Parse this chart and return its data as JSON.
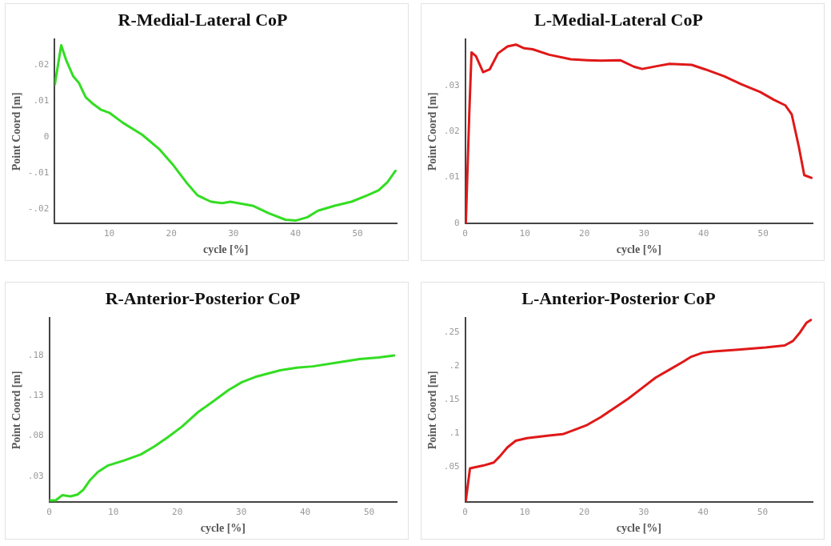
{
  "chart_data": [
    {
      "type": "line",
      "title": "R-Medial-Lateral CoP",
      "xlabel": "cycle [%]",
      "ylabel": "Point Coord [m]",
      "xlim": [
        1.2,
        56.3
      ],
      "ylim": [
        -0.024,
        0.027
      ],
      "xticks": [
        10,
        20,
        30,
        40,
        50
      ],
      "yticks": [
        {
          "value": -0.02,
          "label": "-.02"
        },
        {
          "value": -0.01,
          "label": "-.01"
        },
        0,
        {
          "value": 0.01,
          "label": ".01"
        },
        {
          "value": 0.02,
          "label": ".02"
        }
      ],
      "grid": false,
      "legend": false,
      "marker": "none",
      "line_style": "solid",
      "series": [
        {
          "color": "#33dd22",
          "x": [
            1.24,
            2.26,
            3.1,
            4.2,
            5.1,
            6.2,
            7.35,
            8.7,
            10,
            12.2,
            15.3,
            18,
            20.2,
            22.4,
            24.2,
            26.4,
            28.2,
            29.5,
            33.1,
            35.7,
            38.4,
            40.1,
            41.9,
            43.6,
            46.3,
            49,
            51.6,
            53.4,
            54.8,
            56.1
          ],
          "values": [
            0.0146,
            0.0254,
            0.0211,
            0.0168,
            0.015,
            0.011,
            0.0092,
            0.0075,
            0.0067,
            0.0039,
            0.0006,
            -0.0033,
            -0.0076,
            -0.0126,
            -0.0162,
            -0.018,
            -0.0184,
            -0.018,
            -0.0191,
            -0.0212,
            -0.023,
            -0.0232,
            -0.0223,
            -0.0205,
            -0.0191,
            -0.018,
            -0.0162,
            -0.0148,
            -0.0126,
            -0.0094
          ]
        }
      ]
    },
    {
      "type": "line",
      "title": "L-Medial-Lateral CoP",
      "xlabel": "cycle [%]",
      "ylabel": "Point Coord [m]",
      "xlim": [
        0,
        58.3
      ],
      "ylim": [
        0,
        0.04
      ],
      "xticks": [
        0,
        10,
        20,
        30,
        40,
        50
      ],
      "yticks": [
        0,
        {
          "value": 0.01,
          "label": ".01"
        },
        {
          "value": 0.02,
          "label": ".02"
        },
        {
          "value": 0.03,
          "label": ".03"
        }
      ],
      "grid": false,
      "legend": false,
      "marker": "none",
      "line_style": "solid",
      "series": [
        {
          "color": "#e01818",
          "x": [
            0.1,
            0.7,
            1.06,
            1.8,
            3.0,
            4.1,
            5.5,
            7.1,
            8.5,
            9.9,
            11.3,
            14.1,
            17.7,
            20.5,
            22.8,
            26.0,
            28.3,
            29.7,
            32.5,
            34.3,
            38.0,
            40.3,
            43.5,
            46.3,
            49.5,
            51.8,
            53.7,
            54.8,
            56.0,
            56.9,
            58.1
          ],
          "values": [
            0,
            0.0246,
            0.0372,
            0.0364,
            0.0329,
            0.0335,
            0.037,
            0.0385,
            0.0389,
            0.0381,
            0.0379,
            0.0367,
            0.0357,
            0.0355,
            0.0354,
            0.0355,
            0.0341,
            0.0336,
            0.0343,
            0.0347,
            0.0345,
            0.0335,
            0.032,
            0.0303,
            0.0286,
            0.0269,
            0.0257,
            0.0237,
            0.0166,
            0.0105,
            0.0099
          ]
        }
      ]
    },
    {
      "type": "line",
      "title": "R-Anterior-Posterior CoP",
      "xlabel": "cycle [%]",
      "ylabel": "Point Coord [m]",
      "xlim": [
        0,
        54.3
      ],
      "ylim": [
        -0.002,
        0.226
      ],
      "xticks": [
        0,
        10,
        20,
        30,
        40,
        50
      ],
      "yticks": [
        {
          "value": 0.03,
          "label": ".03"
        },
        {
          "value": 0.08,
          "label": ".08"
        },
        {
          "value": 0.13,
          "label": ".13"
        },
        {
          "value": 0.18,
          "label": ".18"
        }
      ],
      "grid": false,
      "legend": false,
      "marker": "none",
      "line_style": "solid",
      "series": [
        {
          "color": "#33dd22",
          "x": [
            0.1,
            1.0,
            2.05,
            3.3,
            4.4,
            5.3,
            6.3,
            7.6,
            9.1,
            11.7,
            14.3,
            16.4,
            18.5,
            20.7,
            23.2,
            25.8,
            28.0,
            30.1,
            32.2,
            36.1,
            38.7,
            41.2,
            45.1,
            48.5,
            51.5,
            53.9
          ],
          "values": [
            0,
            0,
            0.0065,
            0.0049,
            0.0072,
            0.0131,
            0.0245,
            0.0352,
            0.043,
            0.0495,
            0.057,
            0.0668,
            0.0782,
            0.0912,
            0.1092,
            0.1238,
            0.1368,
            0.1466,
            0.1531,
            0.1613,
            0.1645,
            0.1662,
            0.171,
            0.1753,
            0.1772,
            0.1798
          ]
        }
      ]
    },
    {
      "type": "line",
      "title": "L-Anterior-Posterior CoP",
      "xlabel": "cycle [%]",
      "ylabel": "Point Coord [m]",
      "xlim": [
        0,
        58.4
      ],
      "ylim": [
        -0.002,
        0.271
      ],
      "xticks": [
        0,
        10,
        20,
        30,
        40,
        50
      ],
      "yticks": [
        {
          "value": 0.05,
          "label": ".05"
        },
        {
          "value": 0.1,
          "label": ".1"
        },
        {
          "value": 0.15,
          "label": ".15"
        },
        {
          "value": 0.2,
          "label": ".2"
        },
        {
          "value": 0.25,
          "label": ".25"
        }
      ],
      "grid": false,
      "legend": false,
      "marker": "none",
      "line_style": "solid",
      "series": [
        {
          "color": "#e01818",
          "x": [
            0.1,
            0.8,
            3.0,
            4.8,
            5.8,
            7.1,
            8.5,
            10.4,
            14.1,
            16.4,
            18.2,
            20.5,
            22.8,
            25.1,
            27.4,
            29.7,
            32.0,
            34.3,
            36.6,
            38.0,
            39.9,
            41.7,
            45.9,
            50.5,
            53.7,
            55.1,
            56.2,
            57.4,
            58.1
          ],
          "values": [
            0,
            0.048,
            0.052,
            0.0566,
            0.0656,
            0.0792,
            0.089,
            0.0929,
            0.0968,
            0.0987,
            0.1046,
            0.1124,
            0.1241,
            0.1377,
            0.1514,
            0.167,
            0.1826,
            0.1943,
            0.206,
            0.2137,
            0.2196,
            0.2215,
            0.2243,
            0.2274,
            0.2305,
            0.2371,
            0.2488,
            0.2644,
            0.2683
          ]
        }
      ]
    }
  ]
}
